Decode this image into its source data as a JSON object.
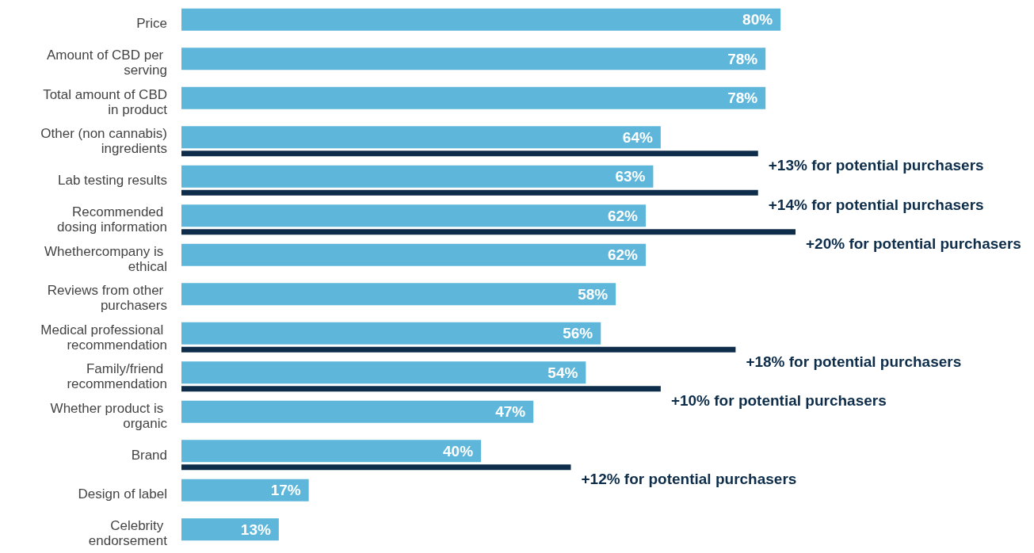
{
  "chart_data": {
    "type": "bar",
    "orientation": "horizontal",
    "tick_labels": "y",
    "annotations": [
      {
        "text": "+13% for potential purchasers",
        "x": 77,
        "y": "Other (non cannabis) ingredients"
      },
      {
        "text": "+14% for potential purchasers",
        "x": 77,
        "y": "Lab testing results"
      },
      {
        "text": "+20% for potential purchasers",
        "x": 82,
        "y": "Recommended dosing information"
      },
      {
        "text": "+18% for potential purchasers",
        "x": 74,
        "y": "Medical professional recommendation"
      },
      {
        "text": "+10% for potential purchasers",
        "x": 64,
        "y": "Family/friend recommendation"
      },
      {
        "text": "+12% for potential purchasers",
        "x": 52,
        "y": "Brand"
      }
    ],
    "categories": [
      "Price",
      "Amount of CBD per serving",
      "Total amount of CBD in product",
      "Other (non cannabis) ingredients",
      "Lab testing results",
      "Recommended dosing information",
      "Whethercompany is ethical",
      "Reviews from other purchasers",
      "Medical professional recommendation",
      "Family/friend recommendation",
      "Whether product is organic",
      "Brand",
      "Design of label",
      "Celebrity endorsement"
    ],
    "series": [
      {
        "color": "#5eb7db",
        "values": [
          80,
          78,
          78,
          64,
          63,
          62,
          62,
          58,
          56,
          54,
          47,
          40,
          17,
          13
        ],
        "value_labels": [
          "80%",
          "78%",
          "78%",
          "64%",
          "63%",
          "62%",
          "62%",
          "58%",
          "56%",
          "54%",
          "47%",
          "40%",
          "17%",
          "13%"
        ]
      },
      {
        "color": "#0d2d4a",
        "values": [
          null,
          null,
          null,
          77,
          77,
          82,
          null,
          null,
          74,
          64,
          null,
          52,
          null,
          null
        ]
      }
    ]
  }
}
